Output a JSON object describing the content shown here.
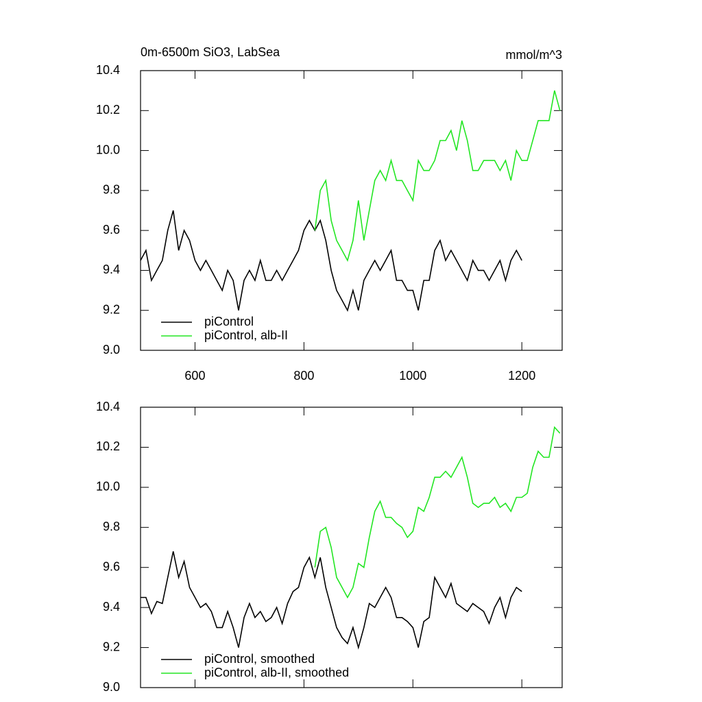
{
  "chart_data": [
    {
      "type": "line",
      "title": "0m-6500m SiO3, LabSea",
      "units": "mmol/m^3",
      "xlim": [
        500,
        1274
      ],
      "xticks": [
        600,
        800,
        1000,
        1200
      ],
      "show_xtick_labels": true,
      "ylim": [
        9.0,
        10.4
      ],
      "yticks": [
        {
          "value": 9.0,
          "label": "9.0"
        },
        9.2,
        9.4,
        9.6,
        9.8,
        {
          "value": 10.0,
          "label": "10.0"
        },
        10.2,
        10.4
      ],
      "series": [
        {
          "name": "piControl",
          "color": "#000000",
          "x": [
            500,
            510,
            520,
            530,
            540,
            550,
            560,
            570,
            580,
            590,
            600,
            610,
            620,
            630,
            640,
            650,
            660,
            670,
            680,
            690,
            700,
            710,
            720,
            730,
            740,
            750,
            760,
            770,
            780,
            790,
            800,
            810,
            820,
            830,
            840,
            850,
            860,
            870,
            880,
            890,
            900,
            910,
            920,
            930,
            940,
            950,
            960,
            970,
            980,
            990,
            1000,
            1010,
            1020,
            1030,
            1040,
            1050,
            1060,
            1070,
            1080,
            1090,
            1100,
            1110,
            1120,
            1130,
            1140,
            1150,
            1160,
            1170,
            1180,
            1190,
            1200
          ],
          "values": [
            9.45,
            9.5,
            9.35,
            9.4,
            9.45,
            9.6,
            9.7,
            9.5,
            9.6,
            9.55,
            9.45,
            9.4,
            9.45,
            9.4,
            9.35,
            9.3,
            9.4,
            9.35,
            9.2,
            9.35,
            9.4,
            9.35,
            9.45,
            9.35,
            9.35,
            9.4,
            9.35,
            9.4,
            9.45,
            9.5,
            9.6,
            9.65,
            9.6,
            9.65,
            9.55,
            9.4,
            9.3,
            9.25,
            9.2,
            9.3,
            9.2,
            9.35,
            9.4,
            9.45,
            9.4,
            9.45,
            9.5,
            9.35,
            9.35,
            9.3,
            9.3,
            9.2,
            9.35,
            9.35,
            9.5,
            9.55,
            9.45,
            9.5,
            9.45,
            9.4,
            9.35,
            9.45,
            9.4,
            9.4,
            9.35,
            9.4,
            9.45,
            9.35,
            9.45,
            9.5,
            9.45
          ]
        },
        {
          "name": "piControl, alb-II",
          "color": "#22e622",
          "x": [
            820,
            830,
            840,
            850,
            860,
            870,
            880,
            890,
            900,
            910,
            920,
            930,
            940,
            950,
            960,
            970,
            980,
            990,
            1000,
            1010,
            1020,
            1030,
            1040,
            1050,
            1060,
            1070,
            1080,
            1090,
            1100,
            1110,
            1120,
            1130,
            1140,
            1150,
            1160,
            1170,
            1180,
            1190,
            1200,
            1210,
            1220,
            1230,
            1240,
            1250,
            1260,
            1270
          ],
          "values": [
            9.6,
            9.8,
            9.85,
            9.65,
            9.55,
            9.5,
            9.45,
            9.55,
            9.75,
            9.55,
            9.7,
            9.85,
            9.9,
            9.85,
            9.95,
            9.85,
            9.85,
            9.8,
            9.75,
            9.95,
            9.9,
            9.9,
            9.95,
            10.05,
            10.05,
            10.1,
            10.0,
            10.15,
            10.05,
            9.9,
            9.9,
            9.95,
            9.95,
            9.95,
            9.9,
            9.95,
            9.85,
            10.0,
            9.95,
            9.95,
            10.05,
            10.15,
            10.15,
            10.15,
            10.3,
            10.2
          ]
        }
      ]
    },
    {
      "type": "line",
      "xlim": [
        500,
        1274
      ],
      "xticks": [
        600,
        800,
        1000,
        1200
      ],
      "show_xtick_labels": false,
      "ylim": [
        9.0,
        10.4
      ],
      "yticks": [
        {
          "value": 9.0,
          "label": "9.0"
        },
        9.2,
        9.4,
        9.6,
        9.8,
        {
          "value": 10.0,
          "label": "10.0"
        },
        10.2,
        10.4
      ],
      "series": [
        {
          "name": "piControl, smoothed",
          "color": "#000000",
          "x": [
            500,
            510,
            520,
            530,
            540,
            550,
            560,
            570,
            580,
            590,
            600,
            610,
            620,
            630,
            640,
            650,
            660,
            670,
            680,
            690,
            700,
            710,
            720,
            730,
            740,
            750,
            760,
            770,
            780,
            790,
            800,
            810,
            820,
            830,
            840,
            850,
            860,
            870,
            880,
            890,
            900,
            910,
            920,
            930,
            940,
            950,
            960,
            970,
            980,
            990,
            1000,
            1010,
            1020,
            1030,
            1040,
            1050,
            1060,
            1070,
            1080,
            1090,
            1100,
            1110,
            1120,
            1130,
            1140,
            1150,
            1160,
            1170,
            1180,
            1190,
            1200
          ],
          "values": [
            9.45,
            9.45,
            9.37,
            9.43,
            9.42,
            9.55,
            9.68,
            9.55,
            9.63,
            9.5,
            9.45,
            9.4,
            9.42,
            9.38,
            9.3,
            9.3,
            9.38,
            9.3,
            9.2,
            9.35,
            9.42,
            9.35,
            9.38,
            9.33,
            9.35,
            9.4,
            9.32,
            9.42,
            9.48,
            9.5,
            9.6,
            9.65,
            9.55,
            9.65,
            9.5,
            9.4,
            9.3,
            9.25,
            9.22,
            9.3,
            9.2,
            9.3,
            9.42,
            9.4,
            9.45,
            9.5,
            9.45,
            9.35,
            9.35,
            9.33,
            9.3,
            9.2,
            9.33,
            9.35,
            9.55,
            9.5,
            9.45,
            9.52,
            9.42,
            9.4,
            9.38,
            9.42,
            9.4,
            9.38,
            9.32,
            9.4,
            9.45,
            9.35,
            9.45,
            9.5,
            9.48
          ]
        },
        {
          "name": "piControl, alb-II, smoothed",
          "color": "#22e622",
          "x": [
            820,
            830,
            840,
            850,
            860,
            870,
            880,
            890,
            900,
            910,
            920,
            930,
            940,
            950,
            960,
            970,
            980,
            990,
            1000,
            1010,
            1020,
            1030,
            1040,
            1050,
            1060,
            1070,
            1080,
            1090,
            1100,
            1110,
            1120,
            1130,
            1140,
            1150,
            1160,
            1170,
            1180,
            1190,
            1200,
            1210,
            1220,
            1230,
            1240,
            1250,
            1260,
            1270
          ],
          "values": [
            9.6,
            9.78,
            9.8,
            9.7,
            9.55,
            9.5,
            9.45,
            9.5,
            9.62,
            9.6,
            9.75,
            9.88,
            9.93,
            9.85,
            9.85,
            9.82,
            9.8,
            9.75,
            9.78,
            9.9,
            9.88,
            9.95,
            10.05,
            10.05,
            10.08,
            10.05,
            10.1,
            10.15,
            10.05,
            9.92,
            9.9,
            9.92,
            9.92,
            9.95,
            9.9,
            9.92,
            9.88,
            9.95,
            9.95,
            9.97,
            10.1,
            10.18,
            10.15,
            10.15,
            10.3,
            10.27
          ]
        }
      ]
    }
  ]
}
